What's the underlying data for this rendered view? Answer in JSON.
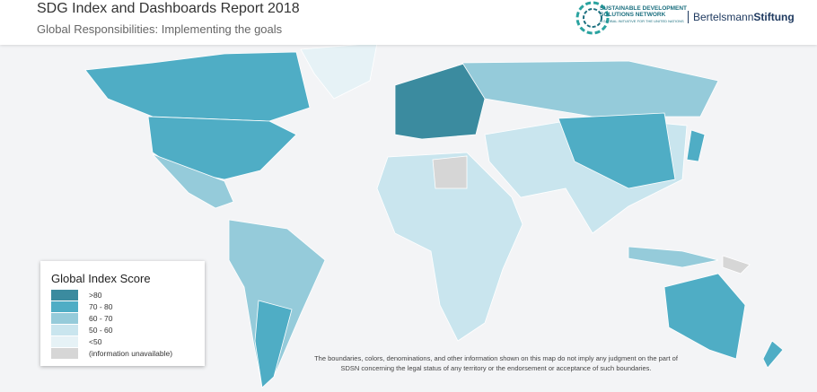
{
  "header": {
    "title": "SDG Index and Dashboards Report 2018",
    "subtitle": "Global Responsibilities: Implementing the goals"
  },
  "logos": {
    "sdsn": [
      "SUSTAINABLE DEVELOPMENT",
      "SOLUTIONS NETWORK",
      "A GLOBAL INITIATIVE FOR THE UNITED NATIONS"
    ],
    "bertelsmann": [
      "Bertelsmann",
      "Stiftung"
    ]
  },
  "legend": {
    "title": "Global Index Score",
    "items": [
      {
        "label": ">80",
        "color": "#3b8b9f"
      },
      {
        "label": "70 - 80",
        "color": "#4fadc5"
      },
      {
        "label": "60 - 70",
        "color": "#95cbda"
      },
      {
        "label": "50 - 60",
        "color": "#c9e5ee"
      },
      {
        "label": "<50",
        "color": "#e6f2f6"
      },
      {
        "label": "(information unavailable)",
        "color": "#d6d6d6"
      }
    ]
  },
  "disclaimer": [
    "The boundaries, colors, denominations, and other information shown on this map do not imply any judgment on the part of",
    "SDSN concerning the legal status of any territory or the endorsement or acceptance of such boundaries."
  ]
}
